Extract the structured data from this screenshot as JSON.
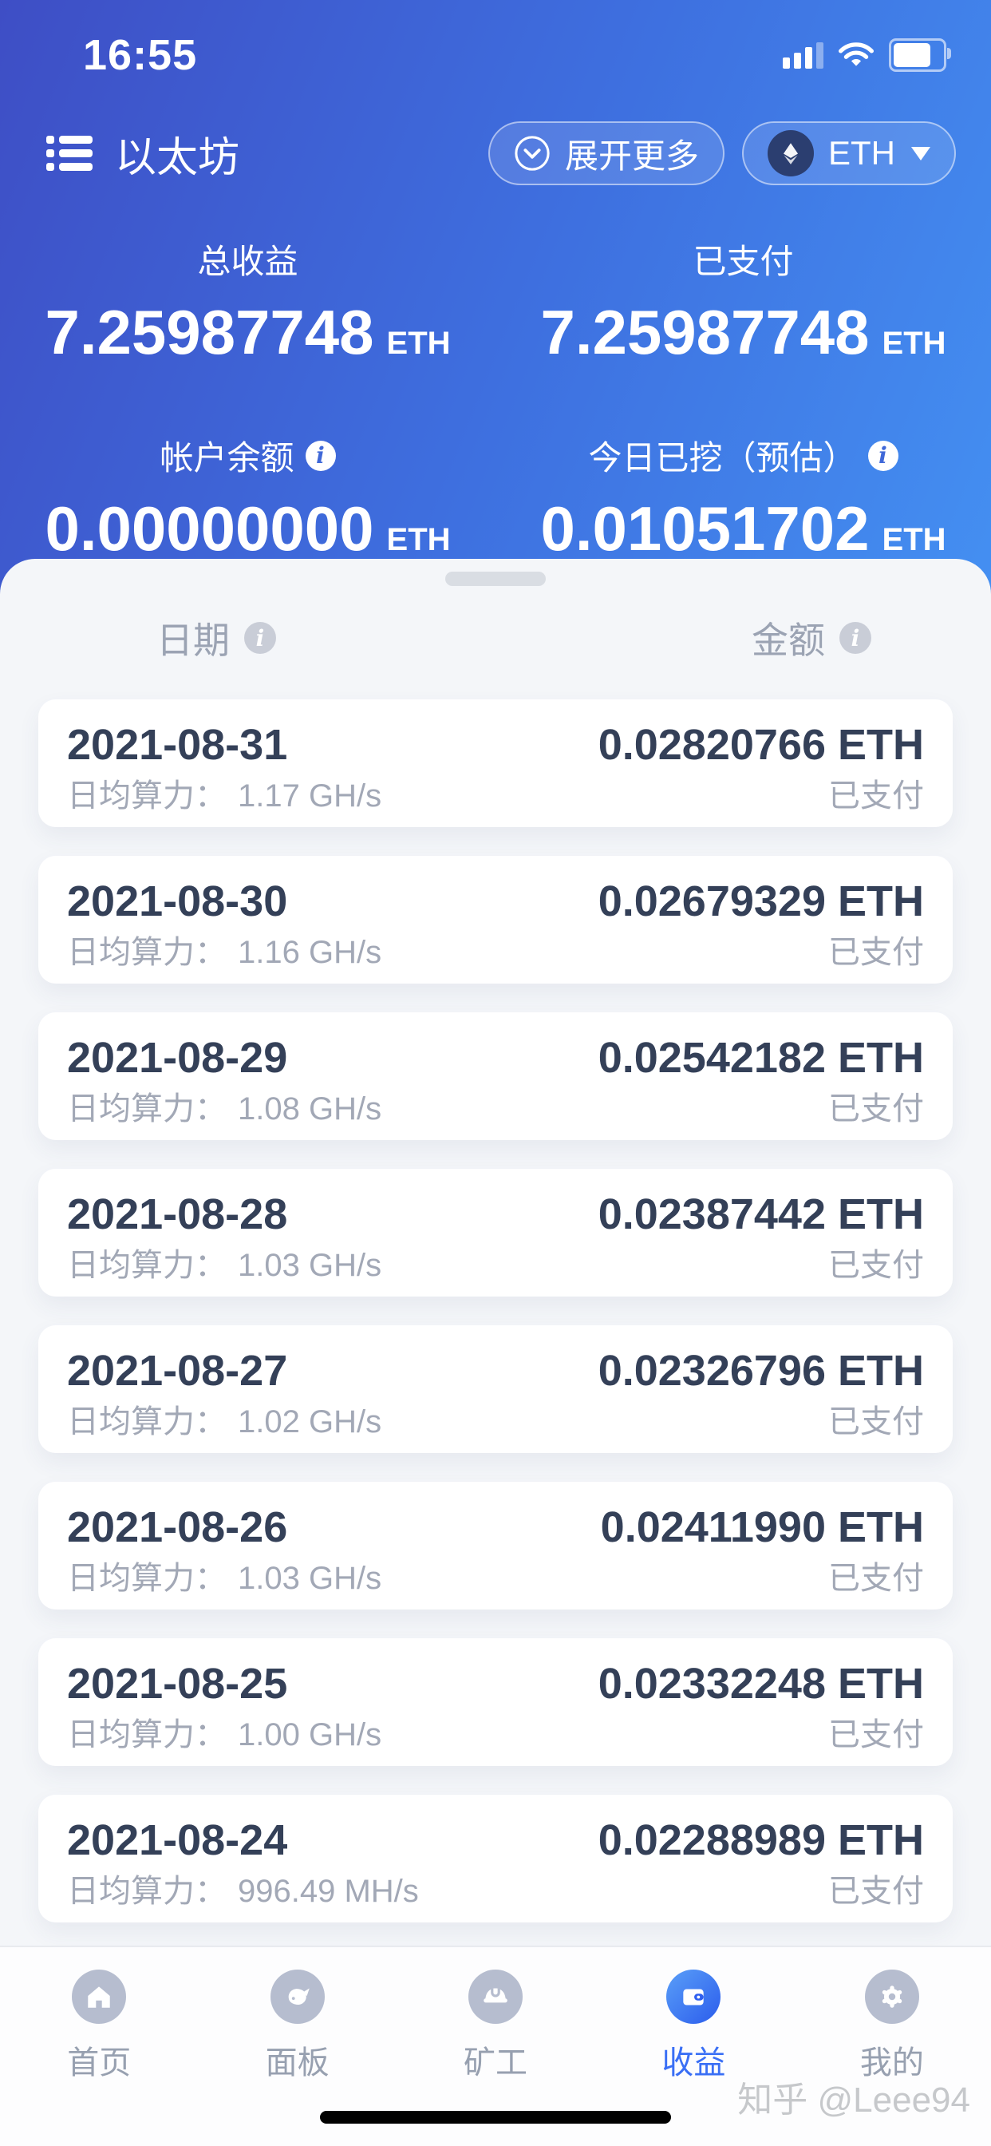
{
  "status_bar": {
    "time": "16:55"
  },
  "header": {
    "title": "以太坊",
    "expand_label": "展开更多",
    "coin": "ETH"
  },
  "icons": {
    "info": "i"
  },
  "colors": {
    "accent": "#3a6ff5",
    "gradient_start": "#3e4ec5",
    "gradient_end": "#4490f2",
    "text_dark": "#344058",
    "text_gray": "#a2a8b6"
  },
  "stats": [
    {
      "label": "总收益",
      "value": "7.25987748",
      "unit": "ETH",
      "info": false
    },
    {
      "label": "已支付",
      "value": "7.25987748",
      "unit": "ETH",
      "info": false
    },
    {
      "label": "帐户余额",
      "value": "0.00000000",
      "unit": "ETH",
      "info": true
    },
    {
      "label": "今日已挖（预估）",
      "value": "0.01051702",
      "unit": "ETH",
      "info": true
    }
  ],
  "list_header": {
    "date": "日期",
    "amount": "金额"
  },
  "labels": {
    "hashrate": "日均算力："
  },
  "rows": [
    {
      "date": "2021-08-31",
      "hashrate": "1.17 GH/s",
      "amount": "0.02820766 ETH",
      "status": "已支付"
    },
    {
      "date": "2021-08-30",
      "hashrate": "1.16 GH/s",
      "amount": "0.02679329 ETH",
      "status": "已支付"
    },
    {
      "date": "2021-08-29",
      "hashrate": "1.08 GH/s",
      "amount": "0.02542182 ETH",
      "status": "已支付"
    },
    {
      "date": "2021-08-28",
      "hashrate": "1.03 GH/s",
      "amount": "0.02387442 ETH",
      "status": "已支付"
    },
    {
      "date": "2021-08-27",
      "hashrate": "1.02 GH/s",
      "amount": "0.02326796 ETH",
      "status": "已支付"
    },
    {
      "date": "2021-08-26",
      "hashrate": "1.03 GH/s",
      "amount": "0.02411990 ETH",
      "status": "已支付"
    },
    {
      "date": "2021-08-25",
      "hashrate": "1.00 GH/s",
      "amount": "0.02332248 ETH",
      "status": "已支付"
    },
    {
      "date": "2021-08-24",
      "hashrate": "996.49 MH/s",
      "amount": "0.02288989 ETH",
      "status": "已支付"
    }
  ],
  "tabs": [
    {
      "label": "首页",
      "icon": "home-icon",
      "active": false
    },
    {
      "label": "面板",
      "icon": "fish-icon",
      "active": false
    },
    {
      "label": "矿工",
      "icon": "helmet-icon",
      "active": false
    },
    {
      "label": "收益",
      "icon": "wallet-icon",
      "active": true
    },
    {
      "label": "我的",
      "icon": "gear-icon",
      "active": false
    }
  ],
  "watermark": "知乎 @Leee94"
}
